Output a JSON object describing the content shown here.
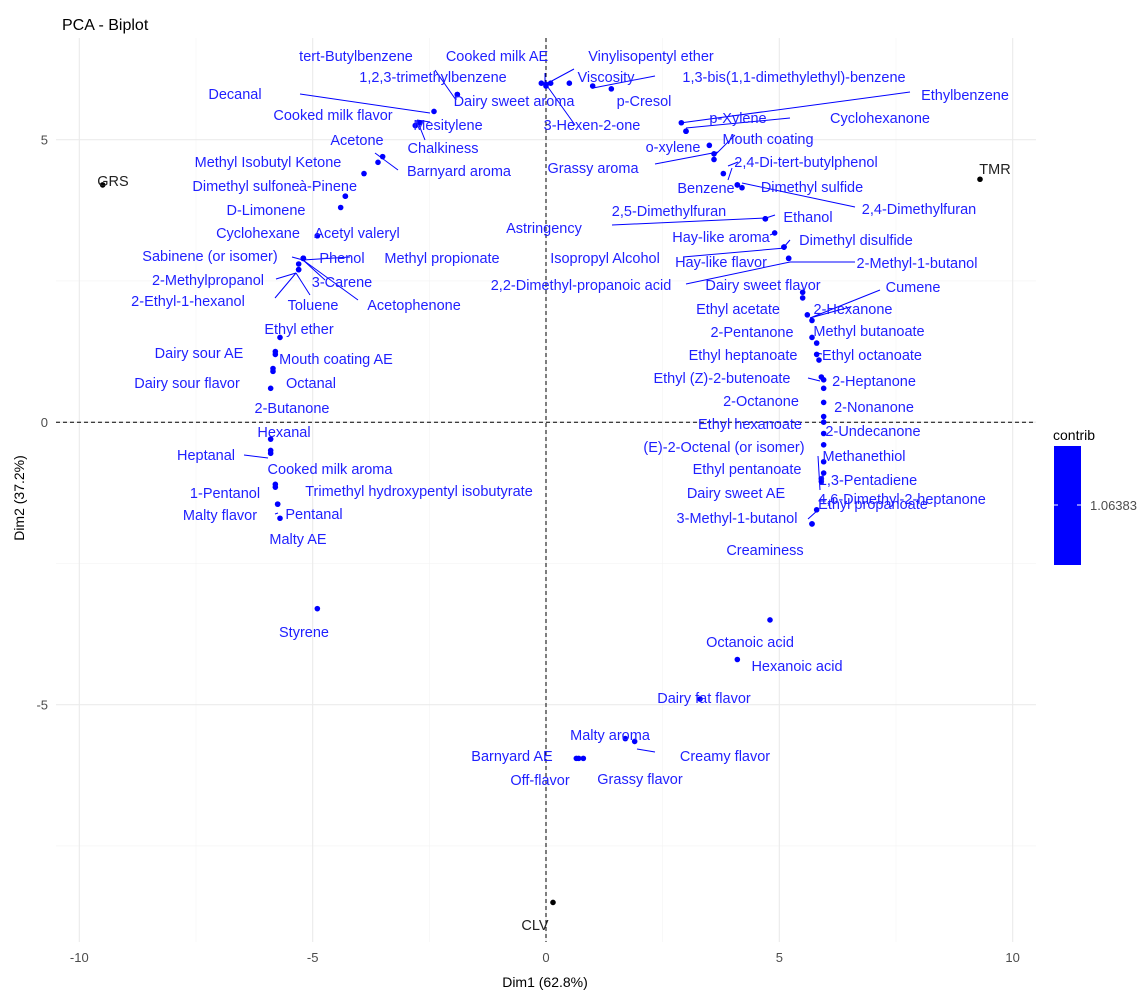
{
  "chart_data": {
    "type": "scatter",
    "title": "PCA - Biplot",
    "xlabel": "Dim1 (62.8%)",
    "ylabel": "Dim2 (37.2%)",
    "xlim": [
      -10.5,
      10.5
    ],
    "ylim": [
      -9.2,
      6.8
    ],
    "x_ticks": [
      -10,
      -5,
      0,
      5,
      10
    ],
    "x_tick_labels": [
      "-10",
      "-5",
      "0",
      "5",
      "10"
    ],
    "y_ticks": [
      -5,
      0,
      5
    ],
    "y_tick_labels": [
      "-5",
      "0",
      "5"
    ],
    "legend": {
      "title": "contrib",
      "value_label": "1.06383",
      "color": "#0000ff"
    },
    "colors": {
      "variables": "#0000ff",
      "variable_text": "#1f1fff",
      "individuals": "#000000"
    },
    "individuals": [
      {
        "name": "GRS",
        "x": -9.5,
        "y": 4.2
      },
      {
        "name": "TMR",
        "x": 9.3,
        "y": 4.3
      },
      {
        "name": "CLV",
        "x": 0.15,
        "y": -8.5
      }
    ],
    "variables": [
      {
        "name": "tert-Butylbenzene",
        "x": -1.9,
        "y": 5.8
      },
      {
        "name": "Cooked milk AE",
        "x": -0.1,
        "y": 6.0
      },
      {
        "name": "Vinylisopentyl ether",
        "x": 0.1,
        "y": 6.0
      },
      {
        "name": "1,2,3-trimethylbenzene",
        "x": -1.9,
        "y": 5.8
      },
      {
        "name": "Viscosity",
        "x": 0.5,
        "y": 6.0
      },
      {
        "name": "1,3-bis(1,1-dimethylethyl)-benzene",
        "x": 1.0,
        "y": 5.95
      },
      {
        "name": "Dairy sweet aroma",
        "x": 0.0,
        "y": 5.98
      },
      {
        "name": "p-Cresol",
        "x": 1.4,
        "y": 5.9
      },
      {
        "name": "Decanal",
        "x": -2.4,
        "y": 5.5
      },
      {
        "name": "Cooked milk flavor",
        "x": -2.7,
        "y": 5.3
      },
      {
        "name": "Mesitylene",
        "x": -2.8,
        "y": 5.25
      },
      {
        "name": "3-Hexen-2-one",
        "x": 0.0,
        "y": 5.95
      },
      {
        "name": "Ethylbenzene",
        "x": 2.9,
        "y": 5.3
      },
      {
        "name": "p-Xylene",
        "x": 3.0,
        "y": 5.15
      },
      {
        "name": "Cyclohexanone",
        "x": 3.0,
        "y": 5.15
      },
      {
        "name": "Mouth coating",
        "x": 3.5,
        "y": 4.9
      },
      {
        "name": "o-xylene",
        "x": 3.6,
        "y": 4.75
      },
      {
        "name": "Acetone",
        "x": -3.5,
        "y": 4.7
      },
      {
        "name": "Chalkiness",
        "x": -2.8,
        "y": 5.25
      },
      {
        "name": "Barnyard aroma",
        "x": -3.6,
        "y": 4.6
      },
      {
        "name": "Methyl Isobutyl Ketone",
        "x": -3.9,
        "y": 4.4
      },
      {
        "name": "Grassy aroma",
        "x": 3.6,
        "y": 4.65
      },
      {
        "name": "2,4-Di-tert-butylphenol",
        "x": 3.8,
        "y": 4.4
      },
      {
        "name": "Dimethyl sulfone",
        "x": -4.3,
        "y": 4.0
      },
      {
        "name": "à-Pinene",
        "x": -4.3,
        "y": 4.0
      },
      {
        "name": "Benzene",
        "x": 4.1,
        "y": 4.2
      },
      {
        "name": "Dimethyl sulfide",
        "x": 4.1,
        "y": 4.2
      },
      {
        "name": "2,4-Dimethylfuran",
        "x": 4.2,
        "y": 4.15
      },
      {
        "name": "D-Limonene",
        "x": -4.4,
        "y": 3.8
      },
      {
        "name": "2,5-Dimethylfuran",
        "x": 4.7,
        "y": 3.6
      },
      {
        "name": "Ethanol",
        "x": 4.7,
        "y": 3.6
      },
      {
        "name": "Astringency",
        "x": 4.7,
        "y": 3.6
      },
      {
        "name": "Cyclohexane",
        "x": -4.9,
        "y": 3.3
      },
      {
        "name": "Acetyl valeryl",
        "x": -4.9,
        "y": 3.3
      },
      {
        "name": "Hay-like aroma",
        "x": 4.9,
        "y": 3.35
      },
      {
        "name": "Dimethyl disulfide",
        "x": 5.1,
        "y": 3.1
      },
      {
        "name": "Sabinene (or isomer)",
        "x": -5.2,
        "y": 2.9
      },
      {
        "name": "Phenol",
        "x": -5.2,
        "y": 2.9
      },
      {
        "name": "Methyl propionate",
        "x": -5.2,
        "y": 2.9
      },
      {
        "name": "Isopropyl Alcohol",
        "x": 5.1,
        "y": 3.1
      },
      {
        "name": "Hay-like flavor",
        "x": 5.1,
        "y": 3.1
      },
      {
        "name": "2-Methyl-1-butanol",
        "x": 5.2,
        "y": 2.9
      },
      {
        "name": "2-Methylpropanol",
        "x": -5.3,
        "y": 2.7
      },
      {
        "name": "3-Carene",
        "x": -5.2,
        "y": 2.9
      },
      {
        "name": "2,2-Dimethyl-propanoic acid",
        "x": 5.2,
        "y": 2.9
      },
      {
        "name": "2-Ethyl-1-hexanol",
        "x": -5.3,
        "y": 2.7
      },
      {
        "name": "Toluene",
        "x": -5.3,
        "y": 2.8
      },
      {
        "name": "Acetophenone",
        "x": -5.2,
        "y": 2.9
      },
      {
        "name": "Dairy sweet flavor",
        "x": 5.5,
        "y": 2.3
      },
      {
        "name": "Cumene",
        "x": 5.7,
        "y": 1.8
      },
      {
        "name": "Ethyl acetate",
        "x": 5.5,
        "y": 2.2
      },
      {
        "name": "2-Hexanone",
        "x": 5.6,
        "y": 1.9
      },
      {
        "name": "Ethyl ether",
        "x": -5.7,
        "y": 1.5
      },
      {
        "name": "2-Pentanone",
        "x": 5.7,
        "y": 1.5
      },
      {
        "name": "Methyl butanoate",
        "x": 5.8,
        "y": 1.4
      },
      {
        "name": "Dairy sour AE",
        "x": -5.8,
        "y": 1.25
      },
      {
        "name": "Mouth coating AE",
        "x": -5.8,
        "y": 1.2
      },
      {
        "name": "Ethyl heptanoate",
        "x": 5.8,
        "y": 1.2
      },
      {
        "name": "Ethyl octanoate",
        "x": 5.85,
        "y": 1.1
      },
      {
        "name": "Dairy sour flavor",
        "x": -5.85,
        "y": 0.95
      },
      {
        "name": "Octanal",
        "x": -5.85,
        "y": 0.9
      },
      {
        "name": "Ethyl (Z)-2-butenoate",
        "x": 5.9,
        "y": 0.8
      },
      {
        "name": "2-Heptanone",
        "x": 5.95,
        "y": 0.75
      },
      {
        "name": "2-Butanone",
        "x": -5.9,
        "y": 0.6
      },
      {
        "name": "2-Octanone",
        "x": 5.95,
        "y": 0.6
      },
      {
        "name": "2-Nonanone",
        "x": 5.95,
        "y": 0.35
      },
      {
        "name": "Ethyl hexanoate",
        "x": 5.95,
        "y": 0.1
      },
      {
        "name": "2-Undecanone",
        "x": 5.95,
        "y": 0.0
      },
      {
        "name": "Hexanal",
        "x": -5.9,
        "y": -0.3
      },
      {
        "name": "Heptanal",
        "x": -5.9,
        "y": -0.5
      },
      {
        "name": "(E)-2-Octenal (or isomer)",
        "x": 5.95,
        "y": -0.2
      },
      {
        "name": "Methanethiol",
        "x": 5.95,
        "y": -0.4
      },
      {
        "name": "Cooked milk aroma",
        "x": -5.9,
        "y": -0.55
      },
      {
        "name": "Ethyl pentanoate",
        "x": 5.95,
        "y": -0.7
      },
      {
        "name": "1,3-Pentadiene",
        "x": 5.95,
        "y": -0.9
      },
      {
        "name": "1-Pentanol",
        "x": -5.8,
        "y": -1.15
      },
      {
        "name": "Trimethyl hydroxypentyl isobutyrate",
        "x": -5.8,
        "y": -1.1
      },
      {
        "name": "Dairy sweet AE",
        "x": 5.9,
        "y": -1.0
      },
      {
        "name": "Ethyl propanoate",
        "x": 5.9,
        "y": -1.05
      },
      {
        "name": "Malty flavor",
        "x": -5.75,
        "y": -1.45
      },
      {
        "name": "Pentanal",
        "x": -5.75,
        "y": -1.45
      },
      {
        "name": "3-Methyl-1-butanol",
        "x": 5.8,
        "y": -1.55
      },
      {
        "name": "4,6-Dimethyl-2-heptanone",
        "x": 5.7,
        "y": -1.8
      },
      {
        "name": "Malty AE",
        "x": -5.7,
        "y": -1.7
      },
      {
        "name": "Creaminess",
        "x": 5.7,
        "y": -1.8
      },
      {
        "name": "Styrene",
        "x": -4.9,
        "y": -3.3
      },
      {
        "name": "Octanoic acid",
        "x": 4.8,
        "y": -3.5
      },
      {
        "name": "Hexanoic acid",
        "x": 4.1,
        "y": -4.2
      },
      {
        "name": "Dairy fat flavor",
        "x": 3.3,
        "y": -4.9
      },
      {
        "name": "Malty aroma",
        "x": 1.7,
        "y": -5.6
      },
      {
        "name": "Creamy flavor",
        "x": 1.9,
        "y": -5.65
      },
      {
        "name": "Barnyard AE",
        "x": 0.65,
        "y": -5.95
      },
      {
        "name": "Grassy flavor",
        "x": 0.8,
        "y": -5.95
      },
      {
        "name": "Off-flavor",
        "x": 0.7,
        "y": -5.95
      }
    ]
  }
}
